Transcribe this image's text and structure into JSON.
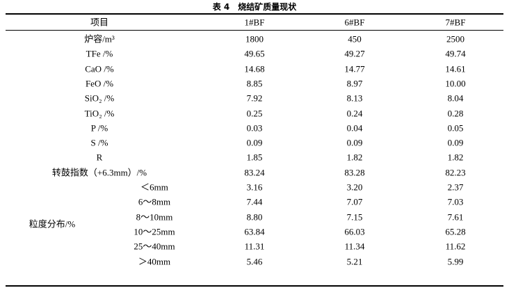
{
  "title": "表 4　烧结矿质量现状",
  "header": [
    "项目",
    "1#BF",
    "6#BF",
    "7#BF"
  ],
  "rows": [
    {
      "label": "炉容/m³",
      "values": [
        "1800",
        "450",
        "2500"
      ]
    },
    {
      "label": "TFe /%",
      "values": [
        "49.65",
        "49.27",
        "49.74"
      ]
    },
    {
      "label": "CaO /%",
      "values": [
        "14.68",
        "14.77",
        "14.61"
      ]
    },
    {
      "label": "FeO /%",
      "values": [
        "8.85",
        "8.97",
        "10.00"
      ]
    },
    {
      "label": "SiO₂ /%",
      "values": [
        "7.92",
        "8.13",
        "8.04"
      ]
    },
    {
      "label": "TiO₂ /%",
      "values": [
        "0.25",
        "0.24",
        "0.28"
      ]
    },
    {
      "label": "P /%",
      "values": [
        "0.03",
        "0.04",
        "0.05"
      ]
    },
    {
      "label": "S /%",
      "values": [
        "0.09",
        "0.09",
        "0.09"
      ]
    },
    {
      "label": "R",
      "values": [
        "1.85",
        "1.82",
        "1.82"
      ]
    },
    {
      "label": "转鼓指数（+6.3mm）/%",
      "values": [
        "83.24",
        "83.28",
        "82.23"
      ]
    }
  ],
  "group": {
    "label": "粒度分布/%",
    "rows": [
      {
        "label": "＜6mm",
        "values": [
          "3.16",
          "3.20",
          "2.37"
        ]
      },
      {
        "label": "6～8mm",
        "values": [
          "7.44",
          "7.07",
          "7.03"
        ]
      },
      {
        "label": "8～10mm",
        "values": [
          "8.80",
          "7.15",
          "7.61"
        ]
      },
      {
        "label": "10～25mm",
        "values": [
          "63.84",
          "66.03",
          "65.28"
        ]
      },
      {
        "label": "25～40mm",
        "values": [
          "11.31",
          "11.34",
          "11.62"
        ]
      },
      {
        "label": "＞40mm",
        "values": [
          "5.46",
          "5.21",
          "5.99"
        ]
      }
    ]
  }
}
